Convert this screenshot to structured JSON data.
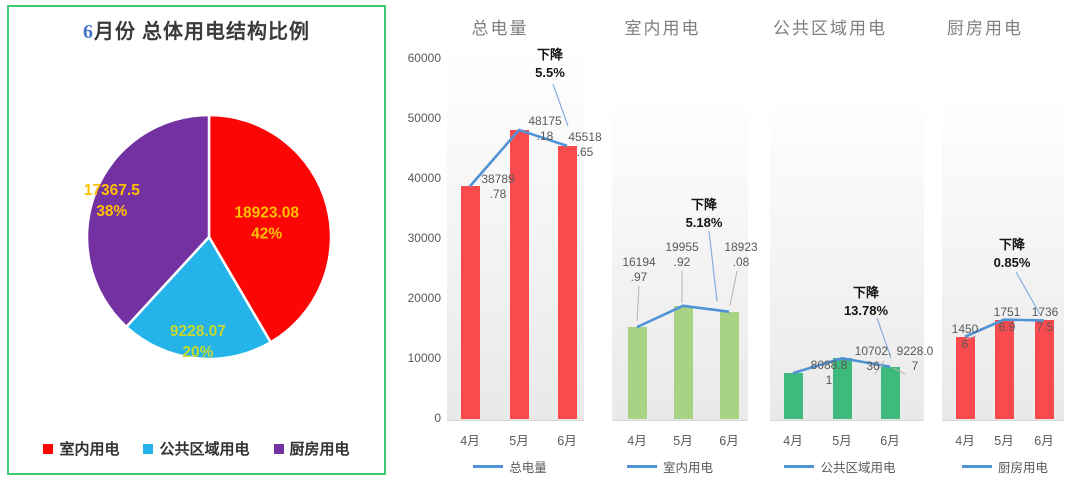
{
  "panel": {
    "title_prefix": "6",
    "title_rest": "月份 总体用电结构比例",
    "border_color": "#3ecb72"
  },
  "chart_data": [
    {
      "type": "pie",
      "title": "6月份 总体用电结构比例",
      "labels": [
        "室内用电",
        "公共区域用电",
        "厨房用电"
      ],
      "values": [
        18923.08,
        9228.07,
        17367.5
      ],
      "percent_labels": [
        "42%",
        "20%",
        "38%"
      ],
      "slice_colors": [
        "#fb0505",
        "#24b4ea",
        "#7331a2"
      ],
      "value_label_colors": [
        "#ffc000",
        "#c6d82f",
        "#ffc000"
      ],
      "legend_position": "bottom"
    },
    {
      "type": "bar+line",
      "title": "总电量",
      "legend_label": "总电量",
      "categories": [
        "4月",
        "5月",
        "6月"
      ],
      "values": [
        38789.78,
        48175.18,
        45518.65
      ],
      "value_labels": [
        [
          "38789",
          ".78"
        ],
        [
          "48175",
          ".18"
        ],
        [
          "45518",
          ".65"
        ]
      ],
      "annotation": [
        "下降",
        "5.5%"
      ],
      "bar_color": "#f94b4e",
      "line_color": "#4f93d6",
      "ylim": [
        0,
        60000
      ],
      "yticks": [
        0,
        10000,
        20000,
        30000,
        40000,
        50000,
        60000
      ],
      "show_y_axis": true,
      "grid": "off"
    },
    {
      "type": "bar+line",
      "title": "室内用电",
      "legend_label": "室内用电",
      "categories": [
        "4月",
        "5月",
        "6月"
      ],
      "values": [
        16194.97,
        19955.92,
        18923.08
      ],
      "value_labels": [
        [
          "16194",
          ".97"
        ],
        [
          "19955",
          ".92"
        ],
        [
          "18923",
          ".08"
        ]
      ],
      "annotation": [
        "下降",
        "5.18%"
      ],
      "bar_color": "#a8d384",
      "line_color": "#4f93d6",
      "ylim": [
        0,
        55000
      ],
      "yticks": [],
      "show_y_axis": false,
      "grid": "off"
    },
    {
      "type": "bar+line",
      "title": "公共区域用电",
      "legend_label": "公共区域用电",
      "categories": [
        "4月",
        "5月",
        "6月"
      ],
      "values": [
        8088.81,
        10702.36,
        9228.07
      ],
      "value_labels": [
        [
          "8088.8",
          "1"
        ],
        [
          "10702.",
          "36"
        ],
        [
          "9228.0",
          "7"
        ]
      ],
      "annotation": [
        "下降",
        "13.78%"
      ],
      "bar_color": "#3eba7c",
      "line_color": "#4f93d6",
      "ylim": [
        0,
        55000
      ],
      "yticks": [],
      "show_y_axis": false,
      "grid": "off"
    },
    {
      "type": "bar+line",
      "title": "厨房用电",
      "legend_label": "厨房用电",
      "categories": [
        "4月",
        "5月",
        "6月"
      ],
      "values": [
        14506,
        17516.9,
        17367.5
      ],
      "value_labels": [
        [
          "1450",
          "6"
        ],
        [
          "1751",
          "6.9"
        ],
        [
          "1736",
          "7.5"
        ]
      ],
      "annotation": [
        "下降",
        "0.85%"
      ],
      "bar_color": "#f94b4e",
      "line_color": "#4f93d6",
      "ylim": [
        0,
        55000
      ],
      "yticks": [],
      "show_y_axis": false,
      "grid": "off"
    }
  ]
}
